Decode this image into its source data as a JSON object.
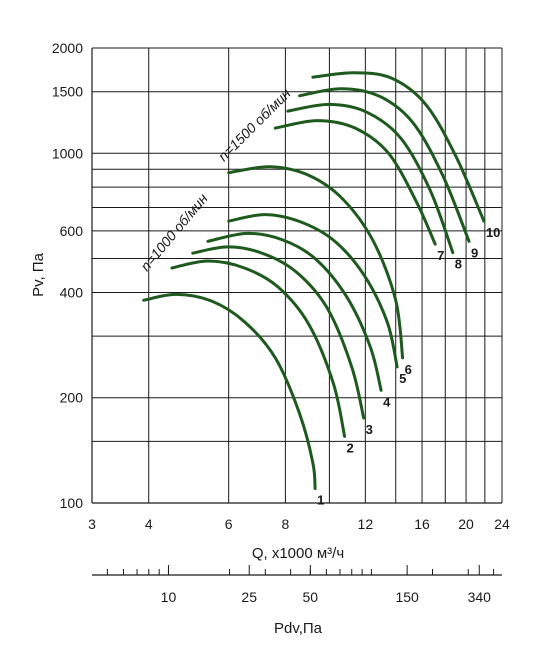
{
  "chart_data": {
    "type": "line",
    "x_scale": "log",
    "y_scale": "log",
    "xlabel": "Q, x1000 м³/ч",
    "ylabel": "Pv, Па",
    "xlim": [
      3,
      24
    ],
    "ylim": [
      100,
      2000
    ],
    "grid": true,
    "x_ticks": [
      "3",
      "4",
      "6",
      "8",
      "12",
      "16",
      "20",
      "24"
    ],
    "y_ticks": [
      "100",
      "200",
      "400",
      "600",
      "1000",
      "1500",
      "2000"
    ],
    "x_grid": [
      3,
      4,
      6,
      8,
      10,
      12,
      14,
      16,
      18,
      20,
      22,
      24
    ],
    "y_grid": [
      100,
      150,
      200,
      300,
      400,
      500,
      600,
      700,
      800,
      900,
      1000,
      1500,
      2000
    ],
    "speed_labels": [
      "n=1000 об/мин",
      "n=1500 об/мин"
    ],
    "series": [
      {
        "name": "1",
        "x": [
          3.9,
          4.6,
          5.5,
          6.5,
          7.6,
          8.6,
          9.2,
          9.3
        ],
        "y": [
          380,
          395,
          378,
          330,
          260,
          180,
          130,
          110
        ]
      },
      {
        "name": "2",
        "x": [
          4.5,
          5.4,
          6.5,
          7.7,
          9.0,
          10.2,
          10.8
        ],
        "y": [
          470,
          492,
          470,
          415,
          325,
          220,
          155
        ]
      },
      {
        "name": "3",
        "x": [
          5.0,
          6.0,
          7.2,
          8.5,
          9.9,
          11.2,
          11.9
        ],
        "y": [
          518,
          540,
          515,
          455,
          360,
          245,
          175
        ]
      },
      {
        "name": "4",
        "x": [
          5.4,
          6.6,
          7.9,
          9.3,
          10.9,
          12.3,
          13.0
        ],
        "y": [
          560,
          590,
          565,
          500,
          390,
          280,
          210
        ]
      },
      {
        "name": "5",
        "x": [
          6.0,
          7.2,
          8.6,
          10.2,
          11.9,
          13.4,
          14.1
        ],
        "y": [
          640,
          668,
          638,
          565,
          450,
          330,
          245
        ]
      },
      {
        "name": "6",
        "x": [
          6.0,
          7.4,
          9.0,
          10.7,
          12.5,
          14.0,
          14.5
        ],
        "y": [
          880,
          915,
          865,
          740,
          560,
          380,
          260
        ]
      },
      {
        "name": "7",
        "x": [
          7.6,
          9.4,
          11.4,
          13.5,
          15.6,
          17.1
        ],
        "y": [
          1180,
          1240,
          1180,
          1000,
          720,
          550
        ]
      },
      {
        "name": "8",
        "x": [
          8.1,
          10.0,
          12.1,
          14.4,
          16.7,
          18.7
        ],
        "y": [
          1320,
          1380,
          1310,
          1100,
          780,
          520
        ]
      },
      {
        "name": "9",
        "x": [
          8.6,
          10.6,
          12.9,
          15.3,
          17.8,
          20.3
        ],
        "y": [
          1460,
          1530,
          1455,
          1220,
          860,
          560
        ]
      },
      {
        "name": "10",
        "x": [
          9.2,
          11.3,
          13.7,
          16.3,
          19.0,
          21.9
        ],
        "y": [
          1650,
          1700,
          1640,
          1380,
          980,
          640
        ]
      }
    ],
    "secondary_axis": {
      "label": "Pdv,Па",
      "ticks": [
        "10",
        "25",
        "50",
        "150",
        "340"
      ]
    }
  }
}
